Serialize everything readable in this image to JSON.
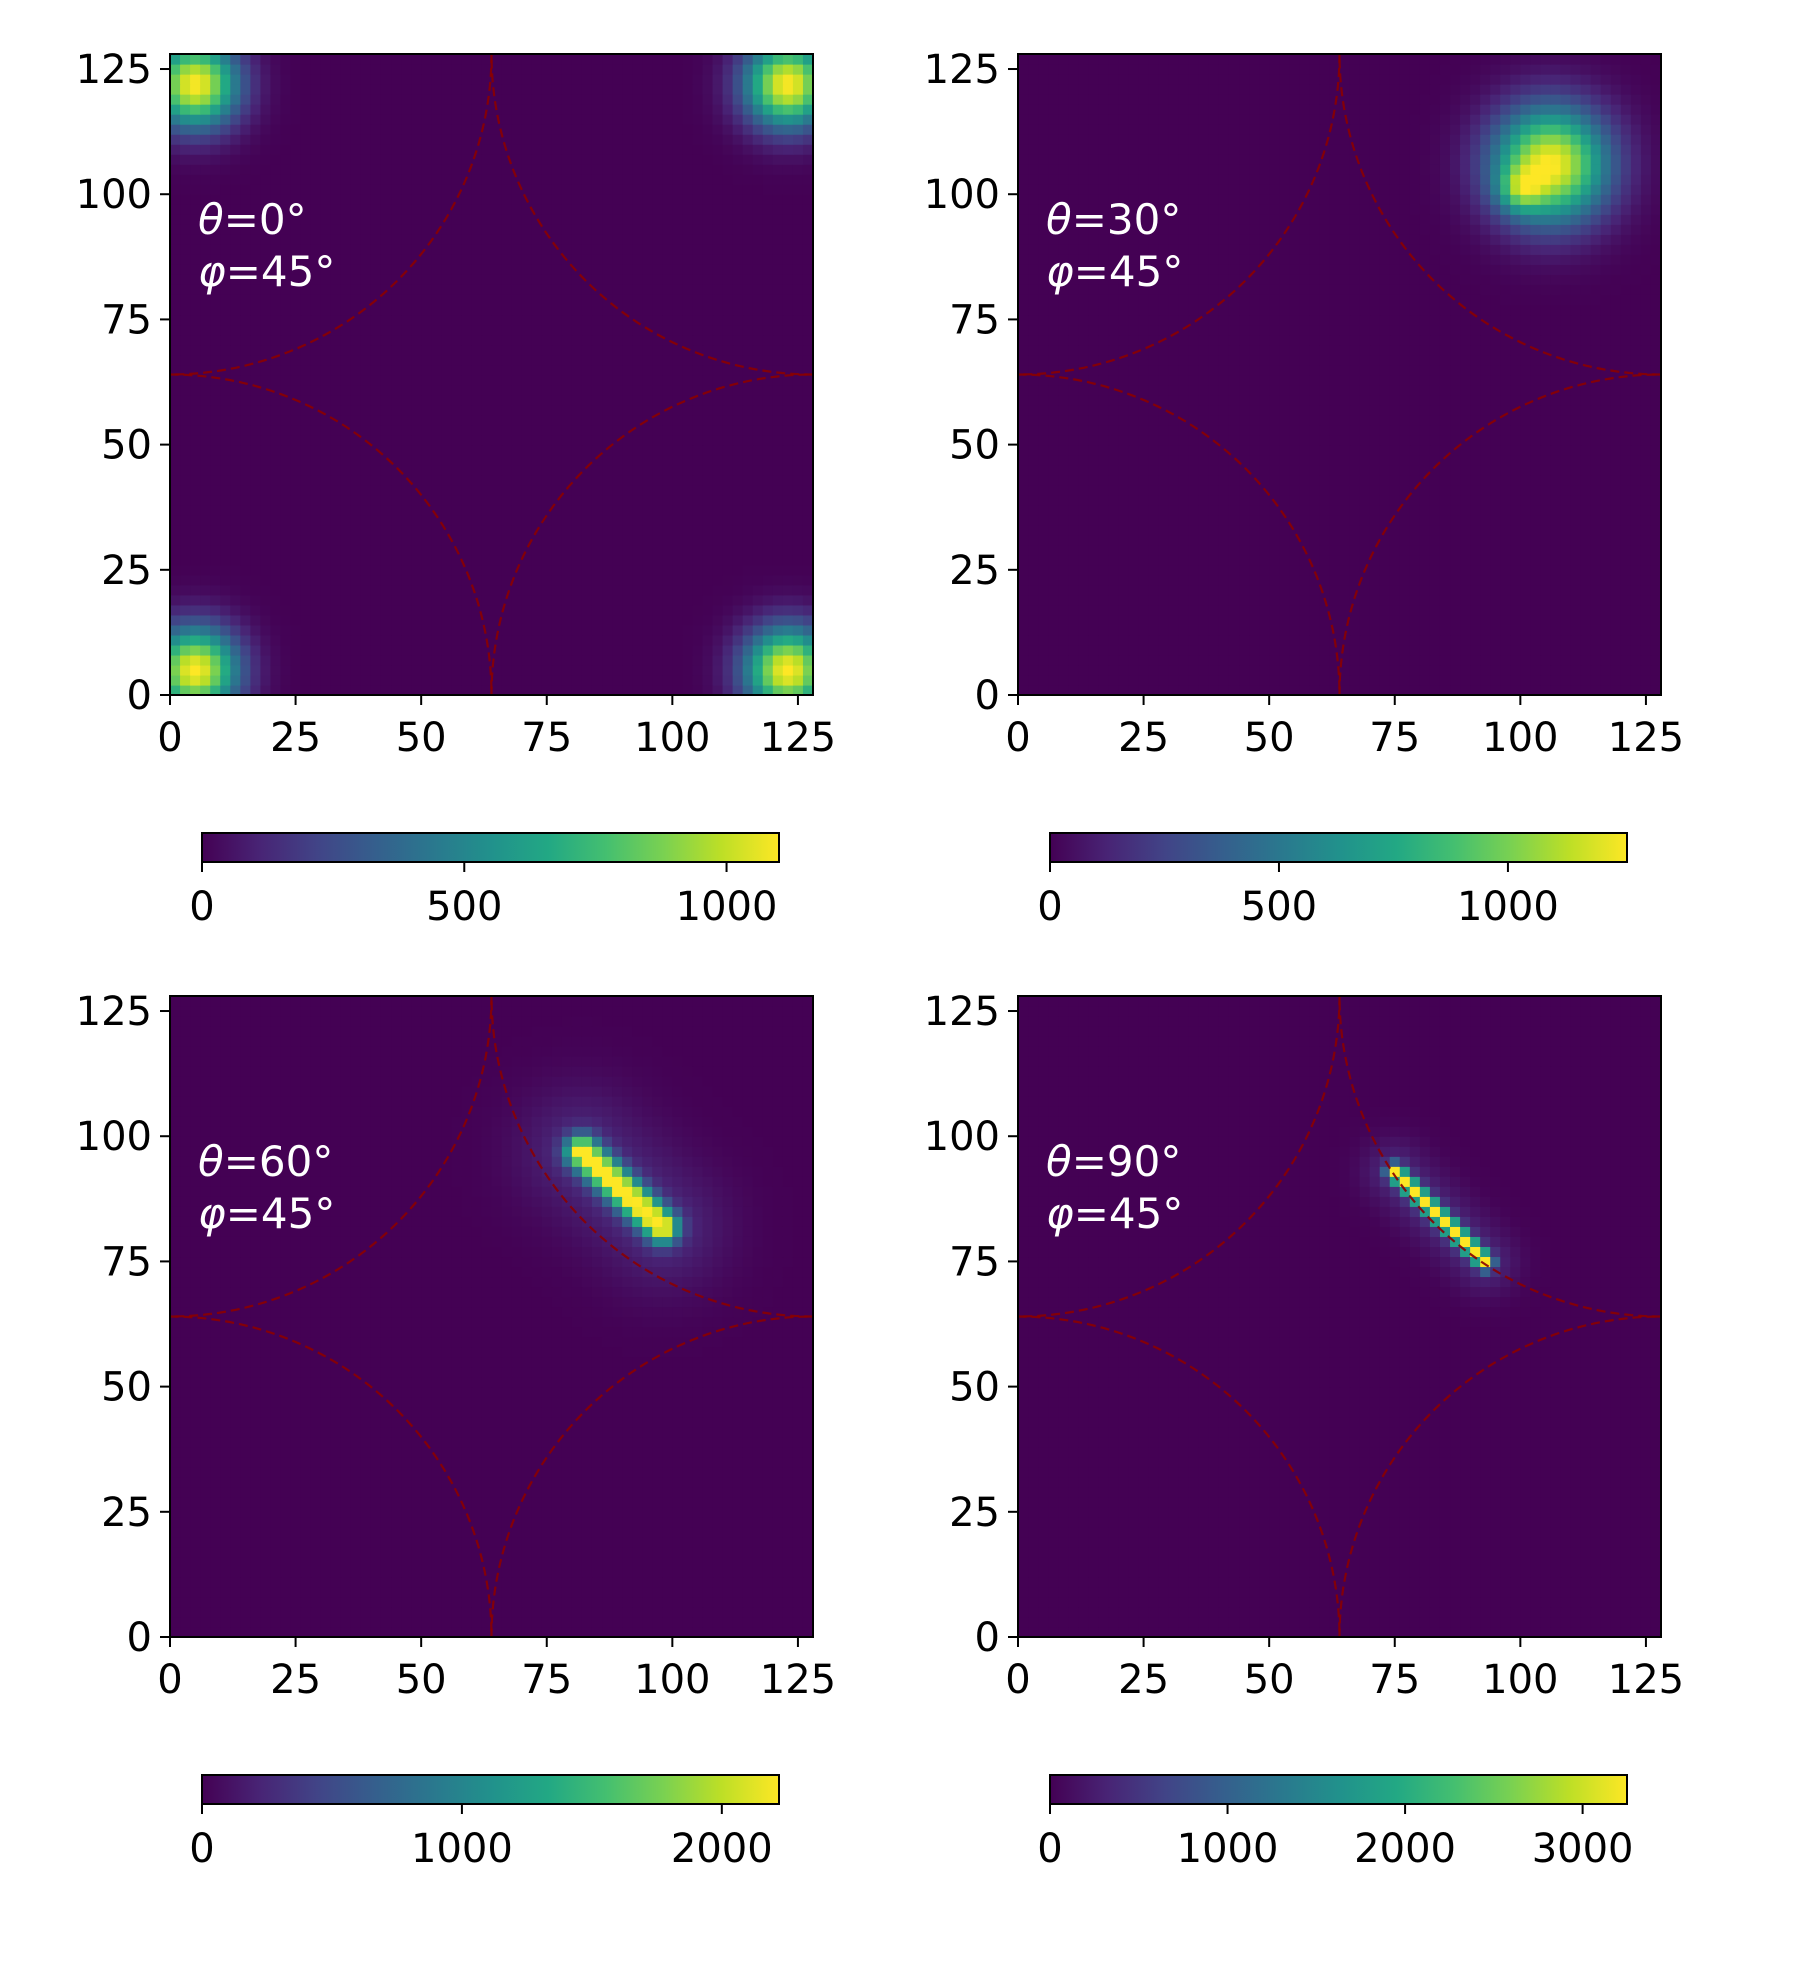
{
  "chart_data": [
    {
      "type": "heatmap",
      "panel": "top-left",
      "annotation": {
        "theta_symbol": "θ",
        "theta": "=0°",
        "phi_symbol": "φ",
        "phi": "=45°"
      },
      "xlim": [
        0,
        128
      ],
      "ylim": [
        0,
        128
      ],
      "x_ticks": [
        0,
        25,
        50,
        75,
        100,
        125
      ],
      "y_ticks": [
        0,
        25,
        50,
        75,
        100,
        125
      ],
      "colorbar": {
        "colormap": "viridis",
        "range": [
          0,
          1100
        ],
        "ticks": [
          0,
          500,
          1000
        ]
      },
      "peaks": [
        {
          "x": 5,
          "y": 5,
          "sx": 6,
          "sy": 6,
          "amp": 1.0
        },
        {
          "x": 123,
          "y": 5,
          "sx": 6,
          "sy": 6,
          "amp": 1.0
        },
        {
          "x": 5,
          "y": 122,
          "sx": 6,
          "sy": 6,
          "amp": 1.0
        },
        {
          "x": 123,
          "y": 122,
          "sx": 6,
          "sy": 6,
          "amp": 1.0
        }
      ],
      "arcs": [
        {
          "cx": 0,
          "cy": 0,
          "r": 64
        },
        {
          "cx": 128,
          "cy": 0,
          "r": 64
        },
        {
          "cx": 0,
          "cy": 128,
          "r": 64
        },
        {
          "cx": 128,
          "cy": 128,
          "r": 64
        }
      ]
    },
    {
      "type": "heatmap",
      "panel": "top-right",
      "annotation": {
        "theta_symbol": "θ",
        "theta": "=30°",
        "phi_symbol": "φ",
        "phi": "=45°"
      },
      "xlim": [
        0,
        128
      ],
      "ylim": [
        0,
        128
      ],
      "x_ticks": [
        0,
        25,
        50,
        75,
        100,
        125
      ],
      "y_ticks": [
        0,
        25,
        50,
        75,
        100,
        125
      ],
      "colorbar": {
        "colormap": "viridis",
        "range": [
          0,
          1260
        ],
        "ticks": [
          0,
          500,
          1000
        ]
      },
      "peaks": [
        {
          "x": 106,
          "y": 106,
          "sx": 8,
          "sy": 8,
          "amp": 1.0
        },
        {
          "x": 100,
          "y": 101,
          "sx": 3,
          "sy": 3,
          "amp": 0.35
        }
      ],
      "arcs": [
        {
          "cx": 0,
          "cy": 0,
          "r": 64
        },
        {
          "cx": 128,
          "cy": 0,
          "r": 64
        },
        {
          "cx": 0,
          "cy": 128,
          "r": 64
        },
        {
          "cx": 128,
          "cy": 128,
          "r": 64
        }
      ]
    },
    {
      "type": "heatmap",
      "panel": "bottom-left",
      "annotation": {
        "theta_symbol": "θ",
        "theta": "=60°",
        "phi_symbol": "φ",
        "phi": "=45°"
      },
      "xlim": [
        0,
        128
      ],
      "ylim": [
        0,
        128
      ],
      "x_ticks": [
        0,
        25,
        50,
        75,
        100,
        125
      ],
      "y_ticks": [
        0,
        25,
        50,
        75,
        100,
        125
      ],
      "colorbar": {
        "colormap": "viridis",
        "range": [
          0,
          2220
        ],
        "ticks": [
          0,
          1000,
          2000
        ]
      },
      "streak": {
        "x1": 82,
        "y1": 97,
        "x2": 98,
        "y2": 82,
        "width": 2.2,
        "amp": 1.0
      },
      "arcs": [
        {
          "cx": 0,
          "cy": 0,
          "r": 64
        },
        {
          "cx": 128,
          "cy": 0,
          "r": 64
        },
        {
          "cx": 0,
          "cy": 128,
          "r": 64
        },
        {
          "cx": 128,
          "cy": 128,
          "r": 64
        }
      ]
    },
    {
      "type": "heatmap",
      "panel": "bottom-right",
      "annotation": {
        "theta_symbol": "θ",
        "theta": "=90°",
        "phi_symbol": "φ",
        "phi": "=45°"
      },
      "xlim": [
        0,
        128
      ],
      "ylim": [
        0,
        128
      ],
      "x_ticks": [
        0,
        25,
        50,
        75,
        100,
        125
      ],
      "y_ticks": [
        0,
        25,
        50,
        75,
        100,
        125
      ],
      "colorbar": {
        "colormap": "viridis",
        "range": [
          0,
          3250
        ],
        "ticks": [
          0,
          1000,
          2000,
          3000
        ]
      },
      "streak": {
        "x1": 75,
        "y1": 93,
        "x2": 93,
        "y2": 75,
        "width": 1.1,
        "amp": 1.0
      },
      "arcs": [
        {
          "cx": 0,
          "cy": 0,
          "r": 64
        },
        {
          "cx": 128,
          "cy": 0,
          "r": 64
        },
        {
          "cx": 0,
          "cy": 128,
          "r": 64
        },
        {
          "cx": 128,
          "cy": 128,
          "r": 64
        }
      ]
    }
  ],
  "colors": {
    "background": "#440154",
    "arc": "#8b0000",
    "annotation": "#ffffff",
    "axis": "#000000"
  }
}
